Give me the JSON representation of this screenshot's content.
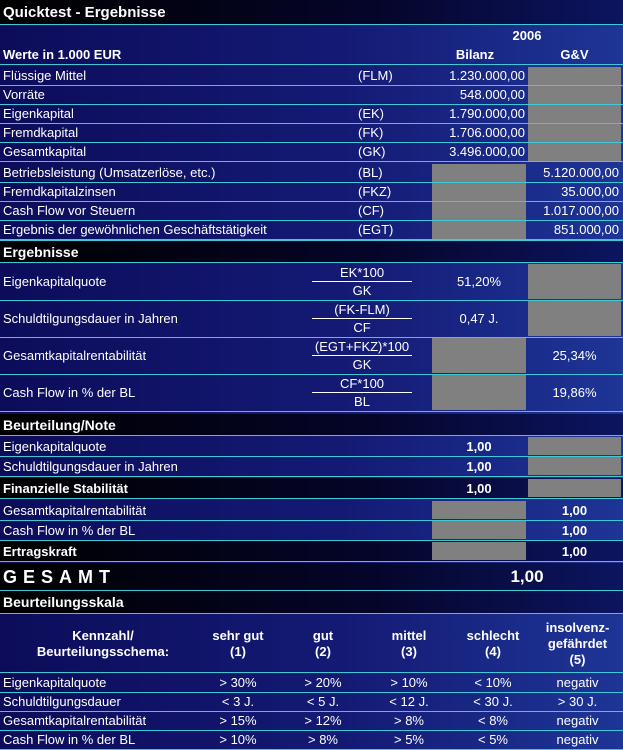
{
  "header": {
    "title": "Quicktest - Ergebnisse",
    "year": "2006",
    "unit": "Werte in 1.000 EUR",
    "col_bilanz": "Bilanz",
    "col_guv": "G&V"
  },
  "inputs": [
    {
      "label": "Flüssige Mittel",
      "code": "(FLM)",
      "bilanz": "1.230.000,00"
    },
    {
      "label": "Vorräte",
      "bilanz": "548.000,00"
    },
    {
      "label": "Eigenkapital",
      "code": "(EK)",
      "bilanz": "1.790.000,00"
    },
    {
      "label": "Fremdkapital",
      "code": "(FK)",
      "bilanz": "1.706.000,00"
    },
    {
      "label": "Gesamtkapital",
      "code": "(GK)",
      "bilanz": "3.496.000,00"
    },
    {
      "label": "Betriebsleistung (Umsatzerlöse, etc.)",
      "code": "(BL)",
      "guv": "5.120.000,00"
    },
    {
      "label": "Fremdkapitalzinsen",
      "code": "(FKZ)",
      "guv": "35.000,00"
    },
    {
      "label": "Cash Flow vor Steuern",
      "code": "(CF)",
      "guv": "1.017.000,00"
    },
    {
      "label": "Ergebnis der gewöhnlichen Geschäftstätigkeit",
      "code": "(EGT)",
      "guv": "851.000,00"
    }
  ],
  "ergebnisse": {
    "title": "Ergebnisse",
    "rows": [
      {
        "label": "Eigenkapitalquote",
        "numerator": "EK*100",
        "denominator": "GK",
        "bilanz": "51,20%"
      },
      {
        "label": "Schuldtilgungsdauer in Jahren",
        "numerator": "(FK-FLM)",
        "denominator": "CF",
        "bilanz": "0,47 J."
      },
      {
        "label": "Gesamtkapitalrentabilität",
        "numerator": "(EGT+FKZ)*100",
        "denominator": "GK",
        "guv": "25,34%"
      },
      {
        "label": "Cash Flow in % der BL",
        "numerator": "CF*100",
        "denominator": "BL",
        "guv": "19,86%"
      }
    ]
  },
  "beurteilung": {
    "title": "Beurteilung/Note",
    "rows": [
      {
        "label": "Eigenkapitalquote",
        "bilanz": "1,00"
      },
      {
        "label": "Schuldtilgungsdauer in Jahren",
        "bilanz": "1,00"
      },
      {
        "label": "Finanzielle Stabilität",
        "bilanz": "1,00",
        "summary": true
      },
      {
        "label": "Gesamtkapitalrentabilität",
        "guv": "1,00"
      },
      {
        "label": "Cash Flow in % der BL",
        "guv": "1,00"
      },
      {
        "label": "Ertragskraft",
        "guv": "1,00",
        "summary": true
      }
    ]
  },
  "gesamt": {
    "label": "GESAMT",
    "value": "1,00"
  },
  "skala": {
    "title": "Beurteilungsskala",
    "columns": [
      "Kennzahl/\nBeurteilungsschema:",
      "sehr gut\n(1)",
      "gut\n(2)",
      "mittel\n(3)",
      "schlecht\n(4)",
      "insolvenz-\ngefährdet\n(5)"
    ],
    "rows": [
      [
        "Eigenkapitalquote",
        "> 30%",
        "> 20%",
        "> 10%",
        "< 10%",
        "negativ"
      ],
      [
        "Schuldtilgungsdauer",
        "< 3 J.",
        "< 5 J.",
        "< 12 J.",
        "< 30 J.",
        "> 30 J."
      ],
      [
        "Gesamtkapitalrentabilität",
        "> 15%",
        "> 12%",
        "> 8%",
        "< 8%",
        "negativ"
      ],
      [
        "Cash Flow in % der BL",
        "> 10%",
        "> 8%",
        "> 5%",
        "< 5%",
        "negativ"
      ]
    ]
  }
}
